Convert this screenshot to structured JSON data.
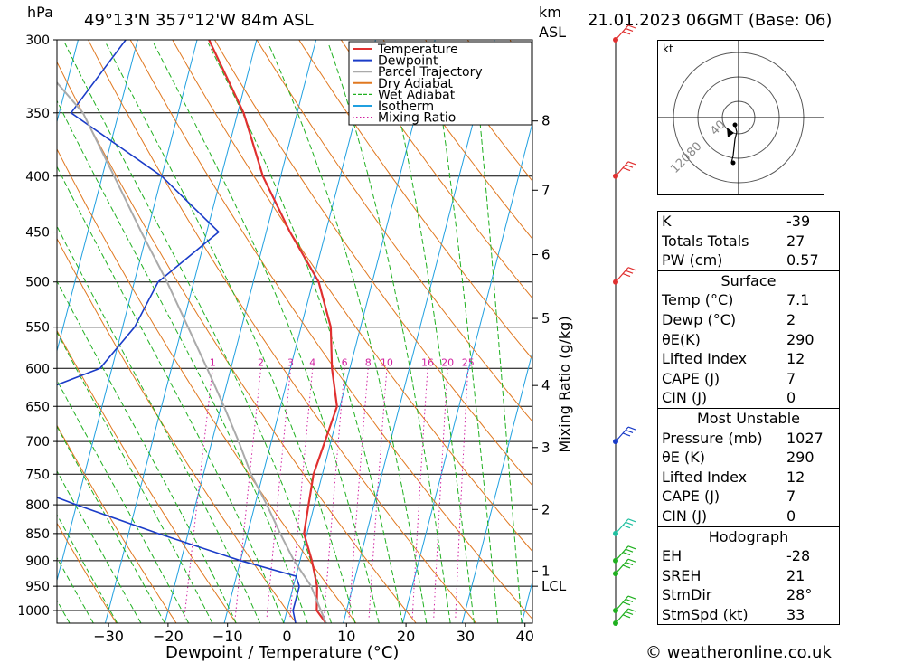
{
  "header": {
    "pressure_unit": "hPa",
    "location": "49°13'N  357°12'W  84m  ASL",
    "km_unit": "km",
    "asl": "ASL",
    "datetime": "21.01.2023  06GMT  (Base: 06)"
  },
  "footer": {
    "copyright": "© weatheronline.co.uk"
  },
  "chart_data": {
    "type": "line",
    "subtype": "skew-T log-P diagram",
    "xlabel": "Dewpoint / Temperature (°C)",
    "ylabel": "hPa",
    "secondary_ylabel": "Mixing Ratio (g/kg)",
    "x_ticks": [
      -30,
      -20,
      -10,
      0,
      10,
      20,
      30,
      40
    ],
    "y_ticks": [
      300,
      350,
      400,
      450,
      500,
      550,
      600,
      650,
      700,
      750,
      800,
      850,
      900,
      950,
      1000
    ],
    "ylim": [
      300,
      1027
    ],
    "grid": true,
    "legend_position": "top-right",
    "legend": [
      {
        "label": "Temperature",
        "color": "#e03030",
        "style": "solid"
      },
      {
        "label": "Dewpoint",
        "color": "#1a3cc8",
        "style": "solid"
      },
      {
        "label": "Parcel Trajectory",
        "color": "#aaaaaa",
        "style": "solid"
      },
      {
        "label": "Dry Adiabat",
        "color": "#e07820",
        "style": "solid"
      },
      {
        "label": "Wet Adiabat",
        "color": "#20b020",
        "style": "dashed"
      },
      {
        "label": "Isotherm",
        "color": "#20a0e0",
        "style": "solid"
      },
      {
        "label": "Mixing Ratio",
        "color": "#d020a0",
        "style": "dotted"
      }
    ],
    "km_ticks": [
      {
        "label": "8",
        "p": 356
      },
      {
        "label": "7",
        "p": 412
      },
      {
        "label": "6",
        "p": 472
      },
      {
        "label": "5",
        "p": 540
      },
      {
        "label": "4",
        "p": 622
      },
      {
        "label": "3",
        "p": 709
      },
      {
        "label": "2",
        "p": 808
      },
      {
        "label": "1",
        "p": 920
      },
      {
        "label": "LCL",
        "p": 950
      }
    ],
    "mixing_ratio_labels": [
      "1",
      "2",
      "3",
      "4",
      "6",
      "8",
      "10",
      "16",
      "20",
      "25"
    ],
    "series": [
      {
        "name": "Temperature",
        "color": "#e03030",
        "points": [
          [
            7.1,
            1027
          ],
          [
            5,
            1000
          ],
          [
            4,
            950
          ],
          [
            2,
            900
          ],
          [
            -0.5,
            850
          ],
          [
            -1,
            800
          ],
          [
            -1.5,
            750
          ],
          [
            -1,
            700
          ],
          [
            -0.5,
            650
          ],
          [
            -3,
            600
          ],
          [
            -5,
            550
          ],
          [
            -9,
            500
          ],
          [
            -16,
            450
          ],
          [
            -23,
            400
          ],
          [
            -29,
            350
          ],
          [
            -38,
            300
          ]
        ]
      },
      {
        "name": "Dewpoint",
        "color": "#1a3cc8",
        "points": [
          [
            2,
            1027
          ],
          [
            1,
            1000
          ],
          [
            1,
            950
          ],
          [
            0,
            930
          ],
          [
            -10,
            900
          ],
          [
            -25,
            850
          ],
          [
            -40,
            800
          ],
          [
            -55,
            750
          ],
          [
            -65,
            700
          ],
          [
            -57,
            650
          ],
          [
            -42,
            600
          ],
          [
            -38,
            550
          ],
          [
            -36,
            500
          ],
          [
            -28,
            450
          ],
          [
            -40,
            400
          ],
          [
            -58,
            350
          ],
          [
            -52,
            300
          ]
        ]
      },
      {
        "name": "Parcel Trajectory",
        "color": "#aaaaaa",
        "points": [
          [
            7.1,
            1027
          ],
          [
            3,
            950
          ],
          [
            -1,
            900
          ],
          [
            -4.5,
            850
          ],
          [
            -8,
            800
          ],
          [
            -12,
            750
          ],
          [
            -15.5,
            700
          ],
          [
            -19.5,
            650
          ],
          [
            -24,
            600
          ],
          [
            -29,
            550
          ],
          [
            -34.5,
            500
          ],
          [
            -41,
            450
          ],
          [
            -48,
            400
          ],
          [
            -56,
            350
          ],
          [
            -64,
            320
          ]
        ]
      }
    ]
  },
  "hodograph": {
    "unit_label": "kt",
    "ring_labels": [
      "120",
      "80",
      "40"
    ]
  },
  "indices": {
    "top": [
      {
        "label": "K",
        "value": "-39"
      },
      {
        "label": "Totals Totals",
        "value": "27"
      },
      {
        "label": "PW (cm)",
        "value": "0.57"
      }
    ],
    "surface": {
      "title": "Surface",
      "rows": [
        {
          "label": "Temp (°C)",
          "value": "7.1"
        },
        {
          "label": "Dewp (°C)",
          "value": "2"
        },
        {
          "label": "θE(K)",
          "value": "290"
        },
        {
          "label": "Lifted Index",
          "value": "12"
        },
        {
          "label": "CAPE (J)",
          "value": "7"
        },
        {
          "label": "CIN (J)",
          "value": "0"
        }
      ]
    },
    "most_unstable": {
      "title": "Most Unstable",
      "rows": [
        {
          "label": "Pressure (mb)",
          "value": "1027"
        },
        {
          "label": "θE (K)",
          "value": "290"
        },
        {
          "label": "Lifted Index",
          "value": "12"
        },
        {
          "label": "CAPE (J)",
          "value": "7"
        },
        {
          "label": "CIN (J)",
          "value": "0"
        }
      ]
    },
    "hodograph": {
      "title": "Hodograph",
      "rows": [
        {
          "label": "EH",
          "value": "-28"
        },
        {
          "label": "SREH",
          "value": "21"
        },
        {
          "label": "StmDir",
          "value": "28°"
        },
        {
          "label": "StmSpd (kt)",
          "value": "33"
        }
      ]
    }
  }
}
